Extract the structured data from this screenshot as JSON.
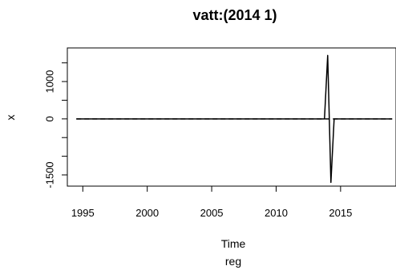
{
  "chart_data": {
    "type": "line",
    "title": "vatt:(2014 1)",
    "xlabel": "Time",
    "sublabel": "reg",
    "ylabel": "x",
    "xlim": [
      1993.8,
      2019.3
    ],
    "ylim": [
      -1800,
      1900
    ],
    "x_ticks": [
      {
        "value": 1995,
        "label": "1995"
      },
      {
        "value": 2000,
        "label": "2000"
      },
      {
        "value": 2005,
        "label": "2005"
      },
      {
        "value": 2010,
        "label": "2010"
      },
      {
        "value": 2015,
        "label": "2015"
      }
    ],
    "y_ticks": [
      {
        "value": -1500,
        "label": "-1500"
      },
      {
        "value": -1000,
        "label": ""
      },
      {
        "value": -500,
        "label": ""
      },
      {
        "value": 0,
        "label": "0"
      },
      {
        "value": 500,
        "label": ""
      },
      {
        "value": 1000,
        "label": "1000"
      },
      {
        "value": 1500,
        "label": ""
      }
    ],
    "series": [
      {
        "style": "solid",
        "color": "#000000",
        "x": [
          1994.5,
          2013.75,
          2014.0,
          2014.25,
          2014.5,
          2019.0
        ],
        "y": [
          0,
          0,
          1700,
          -1700,
          0,
          0
        ]
      },
      {
        "style": "dashed",
        "color": "#000000",
        "x": [
          1994.5,
          2019.0
        ],
        "y": [
          0,
          0
        ]
      }
    ],
    "grid": false
  }
}
